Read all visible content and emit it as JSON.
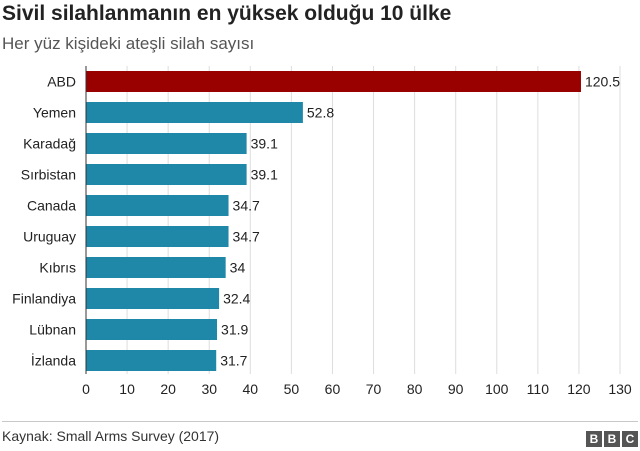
{
  "title": "Sivil silahlanmanın en yüksek olduğu 10 ülke",
  "subtitle": "Her yüz kişideki ateşli silah sayısı",
  "source": "Kaynak: Small Arms Survey (2017)",
  "logo": [
    "B",
    "B",
    "C"
  ],
  "colors": {
    "highlight": "#990000",
    "bar": "#1f88a8",
    "grid": "#dddddd",
    "axis": "#333333"
  },
  "chart_data": {
    "type": "bar",
    "orientation": "horizontal",
    "title": "Sivil silahlanmanın en yüksek olduğu 10 ülke",
    "subtitle": "Her yüz kişideki ateşli silah sayısı",
    "categories": [
      "ABD",
      "Yemen",
      "Karadağ",
      "Sırbistan",
      "Canada",
      "Uruguay",
      "Kıbrıs",
      "Finlandiya",
      "Lübnan",
      "İzlanda"
    ],
    "values": [
      120.5,
      52.8,
      39.1,
      39.1,
      34.7,
      34.7,
      34,
      32.4,
      31.9,
      31.7
    ],
    "value_labels": [
      "120.5",
      "52.8",
      "39.1",
      "39.1",
      "34.7",
      "34.7",
      "34",
      "32.4",
      "31.9",
      "31.7"
    ],
    "highlighted": [
      "ABD"
    ],
    "xlim": [
      0,
      130
    ],
    "xticks": [
      0,
      10,
      20,
      30,
      40,
      50,
      60,
      70,
      80,
      90,
      100,
      110,
      120,
      130
    ],
    "grid": "vertical",
    "xlabel": "",
    "ylabel": ""
  }
}
